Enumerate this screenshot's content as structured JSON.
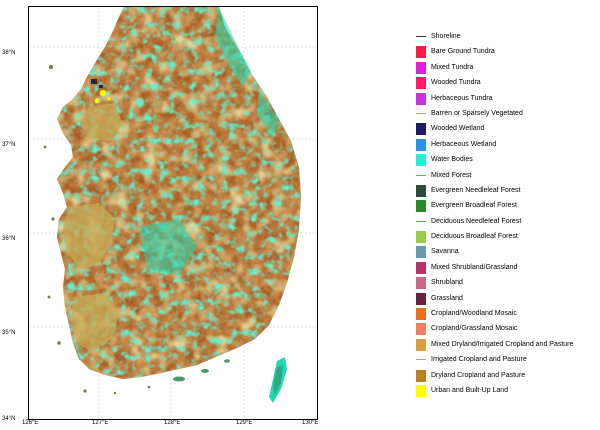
{
  "map": {
    "y_labels": [
      "38°N",
      "37°N",
      "36°N",
      "35°N",
      "34°N"
    ],
    "x_labels": [
      "126°E",
      "127°E",
      "128°E",
      "129°E",
      "130°E"
    ]
  },
  "legend": {
    "items": [
      {
        "label": "Shoreline",
        "color": "#333333",
        "kind": "line"
      },
      {
        "label": "Bare Ground Tundra",
        "color": "#ff1a4a"
      },
      {
        "label": "Mixed Tundra",
        "color": "#e020e0"
      },
      {
        "label": "Wooded Tundra",
        "color": "#ff1a66"
      },
      {
        "label": "Herbaceous Tundra",
        "color": "#cc33dd"
      },
      {
        "label": "Barren or Sparsely Vegetated",
        "color": "#b8a880",
        "kind": "line"
      },
      {
        "label": "Wooded Wetland",
        "color": "#1a1a66"
      },
      {
        "label": "Herbaceous Wetland",
        "color": "#2a90e8"
      },
      {
        "label": "Water Bodies",
        "color": "#22f0d0"
      },
      {
        "label": "Mixed Forest",
        "color": "#22c870",
        "kind": "line"
      },
      {
        "label": "Evergreen Needleleaf Forest",
        "color": "#2a4a3a"
      },
      {
        "label": "Evergreen Broadleaf Forest",
        "color": "#2a8a2a"
      },
      {
        "label": "Deciduous Needleleaf Forest",
        "color": "#66aa33",
        "kind": "line"
      },
      {
        "label": "Deciduous Broadleaf Forest",
        "color": "#99cc44"
      },
      {
        "label": "Savanna",
        "color": "#6699aa"
      },
      {
        "label": "Mixed Shrubland/Grassland",
        "color": "#bb3366"
      },
      {
        "label": "Shrubland",
        "color": "#cc6688"
      },
      {
        "label": "Grassland",
        "color": "#662244"
      },
      {
        "label": "Cropland/Woodland Mosaic",
        "color": "#e87020"
      },
      {
        "label": "Cropland/Grassland Mosaic",
        "color": "#f08060"
      },
      {
        "label": "Mixed Dryland/Irrigated Cropland and Pasture",
        "color": "#d8a040"
      },
      {
        "label": "Irrigated Cropland and Pasture",
        "color": "#c8a060",
        "kind": "line"
      },
      {
        "label": "Dryland Cropland and Pasture",
        "color": "#b88020"
      },
      {
        "label": "Urban and Built-Up Land",
        "color": "#ffff00"
      }
    ]
  }
}
